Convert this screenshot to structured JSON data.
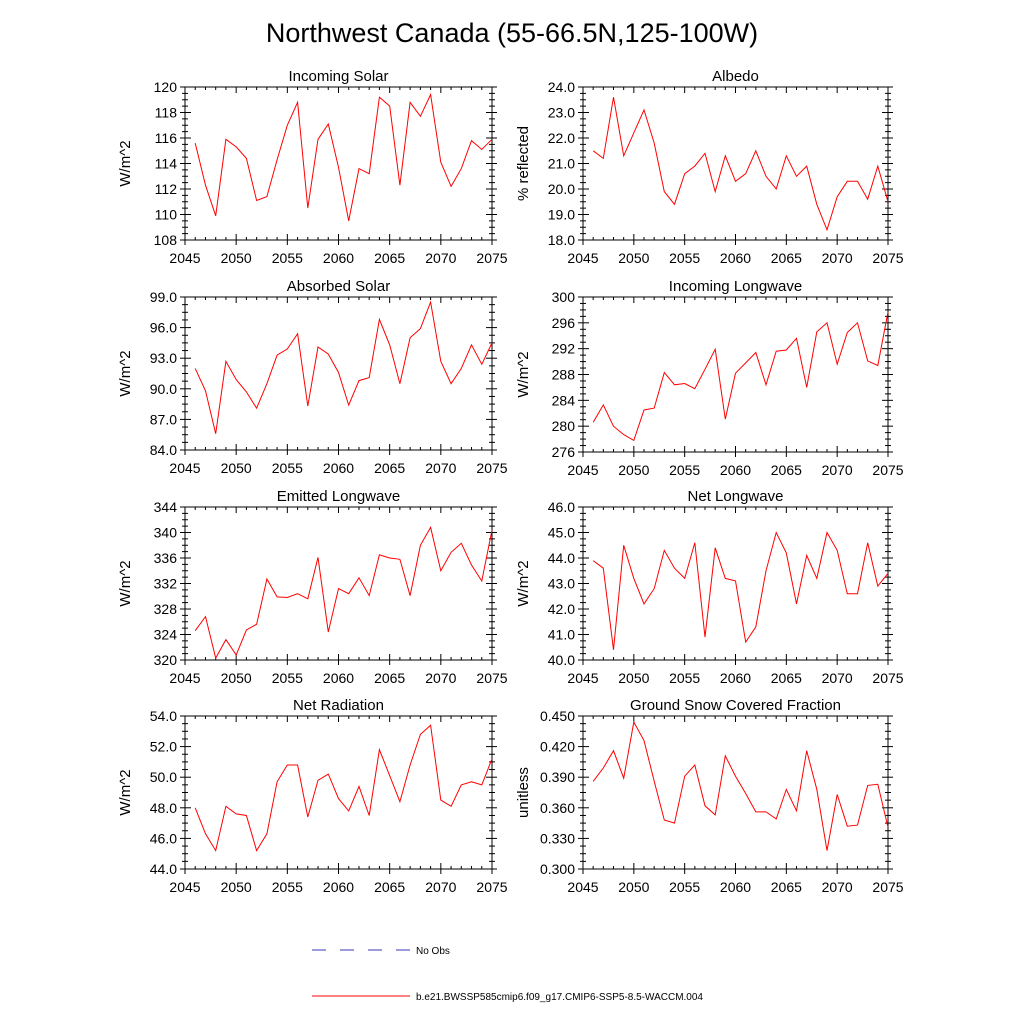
{
  "main_title": "Northwest Canada (55-66.5N,125-100W)",
  "chart_data": [
    {
      "type": "line",
      "title": "Incoming Solar",
      "ylabel": "W/m^2",
      "xlim": [
        2045,
        2075
      ],
      "ylim": [
        108,
        120
      ],
      "xticks": [
        "2045",
        "2050",
        "2055",
        "2060",
        "2065",
        "2070",
        "2075"
      ],
      "yticks": [
        "108",
        "110",
        "112",
        "114",
        "116",
        "118",
        "120"
      ],
      "x": [
        2046,
        2047,
        2048,
        2049,
        2050,
        2051,
        2052,
        2053,
        2054,
        2055,
        2056,
        2057,
        2058,
        2059,
        2060,
        2061,
        2062,
        2063,
        2064,
        2065,
        2066,
        2067,
        2068,
        2069,
        2070,
        2071,
        2072,
        2073,
        2074,
        2075
      ],
      "values": [
        115.6,
        112.3,
        109.9,
        115.9,
        115.3,
        114.4,
        111.1,
        111.4,
        114.3,
        117.0,
        118.8,
        110.5,
        115.9,
        117.1,
        113.7,
        109.5,
        113.6,
        113.2,
        119.2,
        118.5,
        112.3,
        118.8,
        117.7,
        119.4,
        114.1,
        112.2,
        113.6,
        115.8,
        115.1,
        115.9
      ]
    },
    {
      "type": "line",
      "title": "Albedo",
      "ylabel": "% reflected",
      "xlim": [
        2045,
        2075
      ],
      "ylim": [
        18.0,
        24.0
      ],
      "xticks": [
        "2045",
        "2050",
        "2055",
        "2060",
        "2065",
        "2070",
        "2075"
      ],
      "yticks": [
        "18.0",
        "19.0",
        "20.0",
        "21.0",
        "22.0",
        "23.0",
        "24.0"
      ],
      "x": [
        2046,
        2047,
        2048,
        2049,
        2050,
        2051,
        2052,
        2053,
        2054,
        2055,
        2056,
        2057,
        2058,
        2059,
        2060,
        2061,
        2062,
        2063,
        2064,
        2065,
        2066,
        2067,
        2068,
        2069,
        2070,
        2071,
        2072,
        2073,
        2074,
        2075
      ],
      "values": [
        21.5,
        21.2,
        23.6,
        21.3,
        22.2,
        23.1,
        21.8,
        19.9,
        19.4,
        20.6,
        20.9,
        21.4,
        19.9,
        21.3,
        20.3,
        20.6,
        21.5,
        20.5,
        20.0,
        21.3,
        20.5,
        20.9,
        19.4,
        18.4,
        19.7,
        20.3,
        20.3,
        19.6,
        20.9,
        19.5
      ]
    },
    {
      "type": "line",
      "title": "Absorbed Solar",
      "ylabel": "W/m^2",
      "xlim": [
        2045,
        2075
      ],
      "ylim": [
        84.0,
        99.0
      ],
      "xticks": [
        "2045",
        "2050",
        "2055",
        "2060",
        "2065",
        "2070",
        "2075"
      ],
      "yticks": [
        "84.0",
        "87.0",
        "90.0",
        "93.0",
        "96.0",
        "99.0"
      ],
      "x": [
        2046,
        2047,
        2048,
        2049,
        2050,
        2051,
        2052,
        2053,
        2054,
        2055,
        2056,
        2057,
        2058,
        2059,
        2060,
        2061,
        2062,
        2063,
        2064,
        2065,
        2066,
        2067,
        2068,
        2069,
        2070,
        2071,
        2072,
        2073,
        2074,
        2075
      ],
      "values": [
        92.0,
        89.8,
        85.6,
        92.7,
        90.9,
        89.7,
        88.1,
        90.5,
        93.3,
        93.9,
        95.4,
        88.3,
        94.1,
        93.4,
        91.6,
        88.4,
        90.8,
        91.1,
        96.8,
        94.3,
        90.5,
        95.0,
        95.9,
        98.5,
        92.7,
        90.5,
        92.0,
        94.3,
        92.4,
        94.5
      ]
    },
    {
      "type": "line",
      "title": "Incoming Longwave",
      "ylabel": "W/m^2",
      "xlim": [
        2045,
        2075
      ],
      "ylim": [
        276,
        300
      ],
      "xticks": [
        "2045",
        "2050",
        "2055",
        "2060",
        "2065",
        "2070",
        "2075"
      ],
      "yticks": [
        "276",
        "280",
        "284",
        "288",
        "292",
        "296",
        "300"
      ],
      "x": [
        2046,
        2047,
        2048,
        2049,
        2050,
        2051,
        2052,
        2053,
        2054,
        2055,
        2056,
        2057,
        2058,
        2059,
        2060,
        2061,
        2062,
        2063,
        2064,
        2065,
        2066,
        2067,
        2068,
        2069,
        2070,
        2071,
        2072,
        2073,
        2074,
        2075
      ],
      "values": [
        280.6,
        283.3,
        280.0,
        278.7,
        277.8,
        282.5,
        282.8,
        288.3,
        286.4,
        286.6,
        285.8,
        288.8,
        291.9,
        281.1,
        288.2,
        289.8,
        291.4,
        286.4,
        291.6,
        291.8,
        293.6,
        286.0,
        294.6,
        296.0,
        289.6,
        294.5,
        296.0,
        290.1,
        289.4,
        297.7
      ]
    },
    {
      "type": "line",
      "title": "Emitted Longwave",
      "ylabel": "W/m^2",
      "xlim": [
        2045,
        2075
      ],
      "ylim": [
        320,
        344
      ],
      "xticks": [
        "2045",
        "2050",
        "2055",
        "2060",
        "2065",
        "2070",
        "2075"
      ],
      "yticks": [
        "320",
        "324",
        "328",
        "332",
        "336",
        "340",
        "344"
      ],
      "x": [
        2046,
        2047,
        2048,
        2049,
        2050,
        2051,
        2052,
        2053,
        2054,
        2055,
        2056,
        2057,
        2058,
        2059,
        2060,
        2061,
        2062,
        2063,
        2064,
        2065,
        2066,
        2067,
        2068,
        2069,
        2070,
        2071,
        2072,
        2073,
        2074,
        2075
      ],
      "values": [
        324.6,
        326.8,
        320.3,
        323.2,
        320.8,
        324.7,
        325.6,
        332.7,
        329.9,
        329.8,
        330.4,
        329.6,
        336.1,
        324.4,
        331.2,
        330.4,
        332.9,
        330.1,
        336.5,
        336.0,
        335.8,
        330.1,
        338.0,
        340.8,
        334.0,
        336.9,
        338.3,
        334.9,
        332.4,
        340.4
      ]
    },
    {
      "type": "line",
      "title": "Net Longwave",
      "ylabel": "W/m^2",
      "xlim": [
        2045,
        2075
      ],
      "ylim": [
        40.0,
        46.0
      ],
      "xticks": [
        "2045",
        "2050",
        "2055",
        "2060",
        "2065",
        "2070",
        "2075"
      ],
      "yticks": [
        "40.0",
        "41.0",
        "42.0",
        "43.0",
        "44.0",
        "45.0",
        "46.0"
      ],
      "x": [
        2046,
        2047,
        2048,
        2049,
        2050,
        2051,
        2052,
        2053,
        2054,
        2055,
        2056,
        2057,
        2058,
        2059,
        2060,
        2061,
        2062,
        2063,
        2064,
        2065,
        2066,
        2067,
        2068,
        2069,
        2070,
        2071,
        2072,
        2073,
        2074,
        2075
      ],
      "values": [
        43.9,
        43.6,
        40.4,
        44.5,
        43.2,
        42.2,
        42.8,
        44.3,
        43.6,
        43.2,
        44.6,
        40.9,
        44.4,
        43.2,
        43.1,
        40.7,
        41.3,
        43.5,
        45.0,
        44.2,
        42.2,
        44.1,
        43.2,
        45.0,
        44.3,
        42.6,
        42.6,
        44.6,
        42.9,
        43.4
      ]
    },
    {
      "type": "line",
      "title": "Net Radiation",
      "ylabel": "W/m^2",
      "xlim": [
        2045,
        2075
      ],
      "ylim": [
        44.0,
        54.0
      ],
      "xticks": [
        "2045",
        "2050",
        "2055",
        "2060",
        "2065",
        "2070",
        "2075"
      ],
      "yticks": [
        "44.0",
        "46.0",
        "48.0",
        "50.0",
        "52.0",
        "54.0"
      ],
      "x": [
        2046,
        2047,
        2048,
        2049,
        2050,
        2051,
        2052,
        2053,
        2054,
        2055,
        2056,
        2057,
        2058,
        2059,
        2060,
        2061,
        2062,
        2063,
        2064,
        2065,
        2066,
        2067,
        2068,
        2069,
        2070,
        2071,
        2072,
        2073,
        2074,
        2075
      ],
      "values": [
        48.0,
        46.3,
        45.2,
        48.1,
        47.6,
        47.5,
        45.2,
        46.3,
        49.7,
        50.8,
        50.8,
        47.4,
        49.8,
        50.2,
        48.6,
        47.8,
        49.4,
        47.5,
        51.8,
        50.1,
        48.4,
        50.8,
        52.8,
        53.4,
        48.5,
        48.1,
        49.5,
        49.7,
        49.5,
        51.2
      ]
    },
    {
      "type": "line",
      "title": "Ground Snow Covered Fraction",
      "ylabel": "unitless",
      "xlim": [
        2045,
        2075
      ],
      "ylim": [
        0.3,
        0.45
      ],
      "xticks": [
        "2045",
        "2050",
        "2055",
        "2060",
        "2065",
        "2070",
        "2075"
      ],
      "yticks": [
        "0.300",
        "0.330",
        "0.360",
        "0.390",
        "0.420",
        "0.450"
      ],
      "x": [
        2046,
        2047,
        2048,
        2049,
        2050,
        2051,
        2052,
        2053,
        2054,
        2055,
        2056,
        2057,
        2058,
        2059,
        2060,
        2061,
        2062,
        2063,
        2064,
        2065,
        2066,
        2067,
        2068,
        2069,
        2070,
        2071,
        2072,
        2073,
        2074,
        2075
      ],
      "values": [
        0.386,
        0.399,
        0.416,
        0.389,
        0.444,
        0.426,
        0.386,
        0.348,
        0.345,
        0.391,
        0.402,
        0.362,
        0.353,
        0.411,
        0.391,
        0.374,
        0.356,
        0.356,
        0.349,
        0.378,
        0.357,
        0.416,
        0.378,
        0.318,
        0.373,
        0.342,
        0.343,
        0.382,
        0.383,
        0.341
      ]
    }
  ],
  "legend": {
    "items": [
      {
        "label": "No Obs",
        "color": "#3a3ab8",
        "style": "dashed"
      },
      {
        "label": "b.e21.BWSSP585cmip6.f09_g17.CMIP6-SSP5-8.5-WACCM.004",
        "color": "#ff0000",
        "style": "solid"
      }
    ]
  },
  "colors": {
    "series": "#ff0000",
    "axis": "#000000"
  }
}
